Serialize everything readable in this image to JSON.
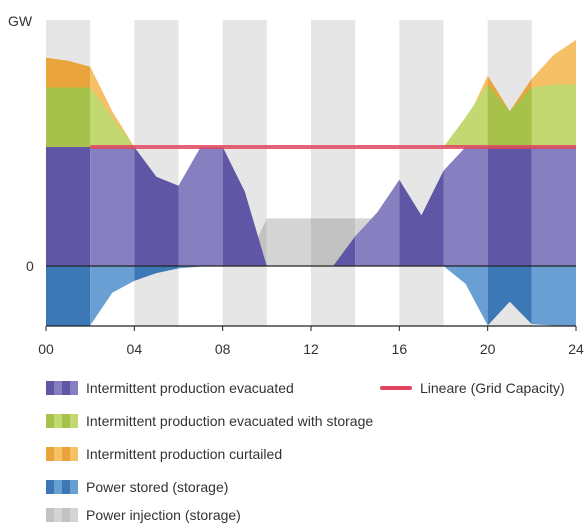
{
  "chart_data": {
    "type": "area",
    "y_axis": {
      "unit_label": "GW",
      "zero_label": "0"
    },
    "x_axis": {
      "range": [
        0,
        24
      ],
      "ticks": [
        0,
        4,
        8,
        12,
        16,
        20,
        24
      ],
      "tick_labels": [
        "00",
        "04",
        "08",
        "12",
        "16",
        "20",
        "24"
      ],
      "shaded_bands": [
        [
          0,
          2
        ],
        [
          4,
          6
        ],
        [
          8,
          10
        ],
        [
          12,
          14
        ],
        [
          16,
          18
        ],
        [
          20,
          22
        ]
      ]
    },
    "ylim": [
      -1.0,
      3.8
    ],
    "grid_capacity": 2.0,
    "series": [
      {
        "name": "Intermittent production evacuated",
        "color": "#5f57a6",
        "color_alt": "#8780c0",
        "x": [
          0,
          2,
          4,
          5,
          6,
          7,
          8,
          9,
          10,
          11,
          12,
          13,
          14,
          15,
          16,
          17,
          18,
          19,
          20,
          21,
          22,
          23,
          24
        ],
        "values": [
          2.0,
          2.0,
          2.0,
          1.5,
          1.35,
          2.0,
          2.0,
          1.25,
          0.0,
          0.0,
          0.0,
          0.0,
          0.5,
          0.9,
          1.45,
          0.85,
          1.6,
          2.0,
          2.0,
          2.0,
          2.0,
          2.0,
          2.0
        ]
      },
      {
        "name": "Intermittent production evacuated with storage",
        "color": "#a6c24a",
        "color_alt": "#c4d872",
        "x": [
          0,
          1,
          2,
          3,
          4,
          18,
          19,
          20,
          21,
          22,
          23,
          24
        ],
        "values": [
          3.0,
          3.0,
          3.0,
          2.5,
          2.0,
          2.0,
          2.5,
          3.05,
          2.6,
          3.0,
          3.05,
          3.05
        ]
      },
      {
        "name": "Intermittent production curtailed",
        "color": "#e9a43b",
        "color_alt": "#f5c066",
        "x": [
          0,
          1,
          2,
          3,
          4,
          18,
          19,
          20,
          21,
          22,
          23,
          24
        ],
        "values": [
          3.5,
          3.45,
          3.35,
          2.6,
          2.0,
          2.0,
          2.4,
          3.2,
          2.6,
          3.15,
          3.55,
          3.8
        ]
      },
      {
        "name": "Power stored (storage)",
        "color": "#3d78b6",
        "color_alt": "#6a9fd4",
        "x": [
          0,
          2,
          3,
          4,
          5,
          6,
          7,
          8,
          9,
          18,
          19,
          20,
          21,
          22,
          23,
          24
        ],
        "values": [
          -1.0,
          -1.0,
          -0.45,
          -0.25,
          -0.12,
          -0.04,
          -0.01,
          0.0,
          0.0,
          0.0,
          -0.3,
          -1.0,
          -0.6,
          -0.98,
          -1.0,
          -1.0
        ]
      },
      {
        "name": "Power injection (storage)",
        "color": "#c2c2c2",
        "color_alt": "#d4d4d4",
        "x": [
          9,
          10,
          13,
          14,
          17,
          18
        ],
        "values": [
          0.0,
          0.8,
          0.8,
          0.8,
          0.8,
          0.0
        ]
      }
    ],
    "line_series": {
      "name": "Lineare (Grid Capacity)",
      "color": "#e0465f",
      "x": [
        2,
        24
      ],
      "values": [
        2.0,
        2.0
      ]
    },
    "legend": {
      "placement": "bottom",
      "items": [
        {
          "label": "Intermittent production evacuated",
          "color1": "#5f57a6",
          "color2": "#8780c0"
        },
        {
          "label": "Intermittent production evacuated with storage",
          "color1": "#a6c24a",
          "color2": "#c4d872"
        },
        {
          "label": "Intermittent production curtailed",
          "color1": "#e9a43b",
          "color2": "#f5c066"
        },
        {
          "label": "Power stored (storage)",
          "color1": "#3d78b6",
          "color2": "#6a9fd4"
        },
        {
          "label": "Power injection (storage)",
          "color1": "#c2c2c2",
          "color2": "#d4d4d4"
        }
      ],
      "line_item": {
        "label": "Lineare (Grid Capacity)",
        "color": "#e0465f"
      }
    }
  }
}
